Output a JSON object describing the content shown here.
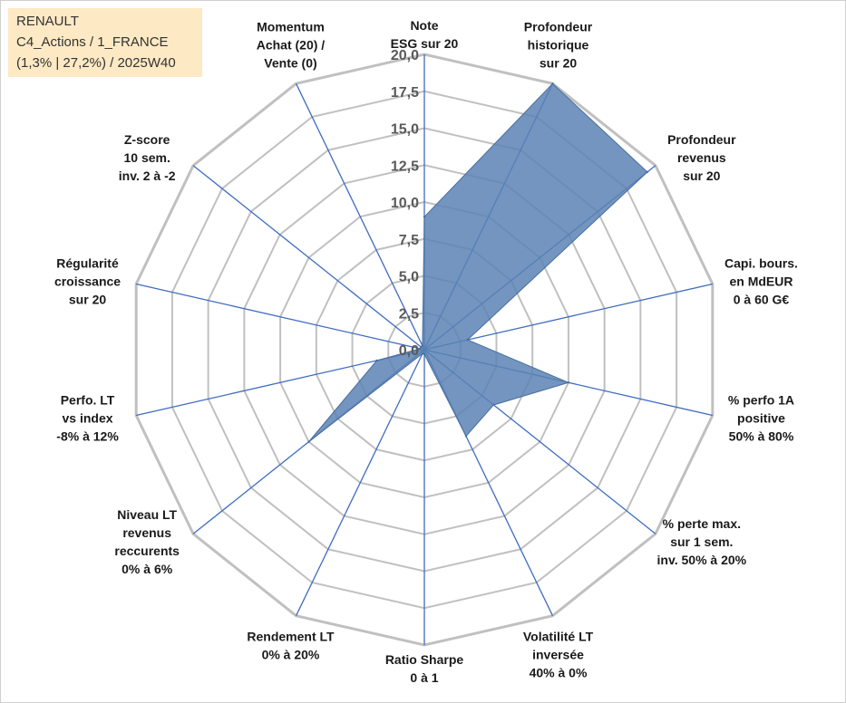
{
  "header": {
    "line1": "RENAULT",
    "line2": "C4_Actions / 1_FRANCE",
    "line3": "(1,3% | 27,2%) / 2025W40"
  },
  "chart_data": {
    "type": "radar",
    "r_range": [
      0,
      20
    ],
    "ticks": [
      "0,0",
      "2,5",
      "5,0",
      "7,5",
      "10,0",
      "12,5",
      "15,0",
      "17,5",
      "20,0"
    ],
    "tick_values": [
      0,
      2.5,
      5,
      7.5,
      10,
      12.5,
      15,
      17.5,
      20
    ],
    "grid": true,
    "fill_color": "#5a82b4",
    "axis_color": "#3f6cc0",
    "grid_color": "#c0c0c0",
    "axes": [
      {
        "label": [
          "Note",
          "ESG sur 20"
        ],
        "value": 9.0
      },
      {
        "label": [
          "Profondeur",
          "historique",
          "sur 20"
        ],
        "value": 20.0
      },
      {
        "label": [
          "Profondeur",
          "revenus",
          "sur 20"
        ],
        "value": 19.3
      },
      {
        "label": [
          "Capi. bours.",
          "en MdEUR",
          "0 à 60 G€"
        ],
        "value": 3.0
      },
      {
        "label": [
          "% perfo 1A",
          "positive",
          "50% à 80%"
        ],
        "value": 10.0
      },
      {
        "label": [
          "% perte max.",
          "sur 1 sem.",
          "inv. 50% à 20%"
        ],
        "value": 6.0
      },
      {
        "label": [
          "Volatilité LT",
          "inversée",
          "40% à 0%"
        ],
        "value": 6.5
      },
      {
        "label": [
          "Ratio Sharpe",
          "0 à 1"
        ],
        "value": 0.3
      },
      {
        "label": [
          "Rendement LT",
          "0% à 20%"
        ],
        "value": 0.3
      },
      {
        "label": [
          "Niveau LT",
          "revenus",
          "reccurents",
          "0% à 6%"
        ],
        "value": 10.0
      },
      {
        "label": [
          "Perfo. LT",
          "vs index",
          "-8% à 12%"
        ],
        "value": 3.3
      },
      {
        "label": [
          "Régularité",
          "croissance",
          "sur 20"
        ],
        "value": 0.3
      },
      {
        "label": [
          "Z-score",
          "10 sem.",
          "inv. 2 à -2"
        ],
        "value": 0.3
      },
      {
        "label": [
          "Momentum",
          "Achat (20) /",
          "Vente (0)"
        ],
        "value": 0.3
      }
    ]
  }
}
